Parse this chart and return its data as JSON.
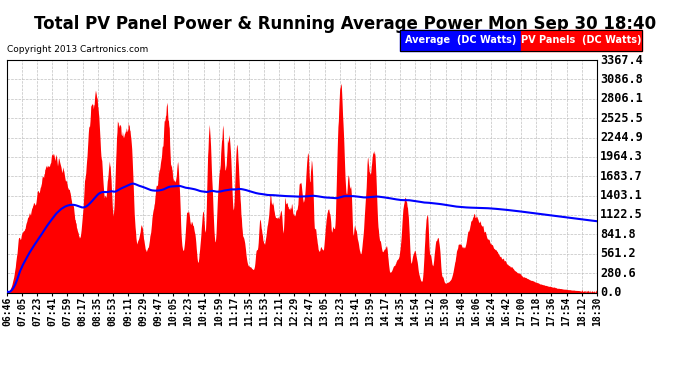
{
  "title": "Total PV Panel Power & Running Average Power Mon Sep 30 18:40",
  "copyright": "Copyright 2013 Cartronics.com",
  "legend_avg": "Average  (DC Watts)",
  "legend_pv": "PV Panels  (DC Watts)",
  "y_ticks": [
    0.0,
    280.6,
    561.2,
    841.8,
    1122.5,
    1403.1,
    1683.7,
    1964.3,
    2244.9,
    2525.5,
    2806.1,
    3086.8,
    3367.4
  ],
  "x_labels": [
    "06:46",
    "07:05",
    "07:23",
    "07:41",
    "07:59",
    "08:17",
    "08:35",
    "08:53",
    "09:11",
    "09:29",
    "09:47",
    "10:05",
    "10:23",
    "10:41",
    "10:59",
    "11:17",
    "11:35",
    "11:53",
    "12:11",
    "12:29",
    "12:47",
    "13:05",
    "13:23",
    "13:41",
    "13:59",
    "14:17",
    "14:35",
    "14:54",
    "15:12",
    "15:30",
    "15:48",
    "16:06",
    "16:24",
    "16:42",
    "17:00",
    "17:18",
    "17:36",
    "17:54",
    "18:12",
    "18:30"
  ],
  "bar_color": "#FF0000",
  "avg_line_color": "#0000FF",
  "background_color": "#FFFFFF",
  "plot_bg_color": "#FFFFFF",
  "grid_color": "#C0C0C0",
  "title_fontsize": 12,
  "axis_label_fontsize": 7,
  "ytick_fontsize": 8.5,
  "ymax": 3367.4,
  "ymin": 0.0
}
